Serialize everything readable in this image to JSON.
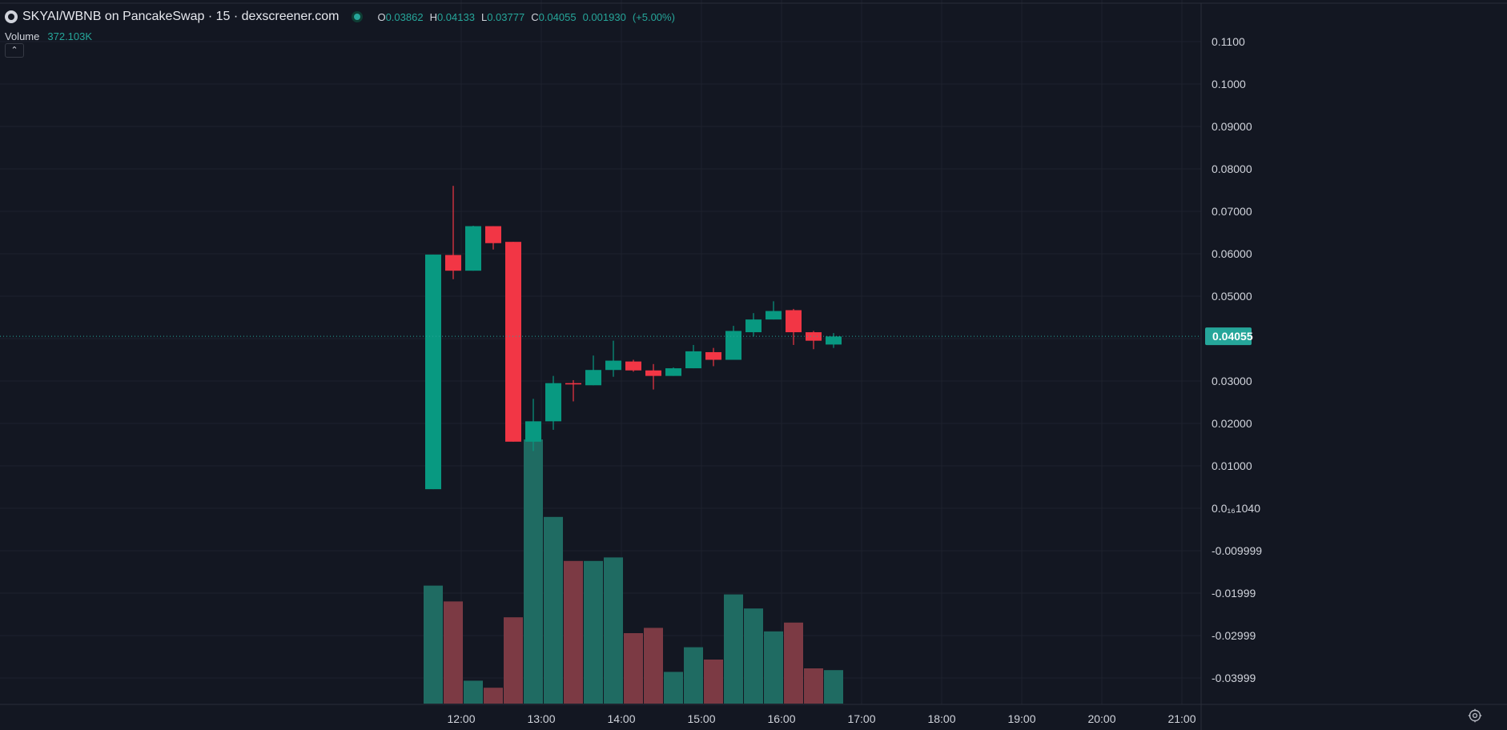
{
  "header": {
    "title": "SKYAI/WBNB on PancakeSwap · 15 · dexscreener.com",
    "ohlc": [
      {
        "k": "O",
        "v": "0.03862"
      },
      {
        "k": "H",
        "v": "0.04133"
      },
      {
        "k": "L",
        "v": "0.03777"
      },
      {
        "k": "C",
        "v": "0.04055"
      },
      {
        "k": "",
        "v": "0.001930"
      },
      {
        "k": "",
        "v": "(+5.00%)"
      }
    ],
    "volume_label": "Volume",
    "volume_value": "372.103K",
    "collapse_icon": "chevron-up-icon"
  },
  "colors": {
    "background": "#131722",
    "grid": "#1e222d",
    "up": "#089981",
    "down": "#f23645",
    "up_volume": "#1f6b62",
    "down_volume": "#7c3a44",
    "axis_text": "#d1d4dc",
    "price_line": "#26a69a"
  },
  "chart_data": {
    "type": "candlestick",
    "y_axis": {
      "labels": [
        "0.1100",
        "0.1000",
        "0.09000",
        "0.08000",
        "0.07000",
        "0.06000",
        "0.05000",
        "0.04000",
        "0.03000",
        "0.02000",
        "0.01000",
        "0.0₁₆1040",
        "-0.009999",
        "-0.01999",
        "-0.02999",
        "-0.03999"
      ],
      "label_values": [
        0.11,
        0.1,
        0.09,
        0.08,
        0.07,
        0.06,
        0.05,
        0.04,
        0.03,
        0.02,
        0.01,
        0.0,
        -0.01,
        -0.02,
        -0.03,
        -0.04
      ],
      "range": [
        -0.046,
        0.116
      ]
    },
    "x_axis": {
      "labels": [
        "12:00",
        "13:00",
        "14:00",
        "15:00",
        "16:00",
        "17:00",
        "18:00",
        "19:00",
        "20:00",
        "21:00"
      ],
      "label_hours": [
        12,
        13,
        14,
        15,
        16,
        17,
        18,
        19,
        20,
        21
      ]
    },
    "current_price": "0.04055",
    "current_price_value": 0.04055,
    "candles": [
      {
        "t": "11:30",
        "o": 0.0045,
        "h": 0.0598,
        "l": 0.0045,
        "c": 0.0598,
        "vol": 0.67
      },
      {
        "t": "11:45",
        "o": 0.0597,
        "h": 0.076,
        "l": 0.054,
        "c": 0.056,
        "vol": 0.58
      },
      {
        "t": "12:00",
        "o": 0.056,
        "h": 0.0666,
        "l": 0.056,
        "c": 0.0665,
        "vol": 0.13
      },
      {
        "t": "12:15",
        "o": 0.0665,
        "h": 0.0665,
        "l": 0.061,
        "c": 0.0625,
        "vol": 0.09
      },
      {
        "t": "12:30",
        "o": 0.0628,
        "h": 0.0628,
        "l": 0.0157,
        "c": 0.0157,
        "vol": 0.49
      },
      {
        "t": "12:45",
        "o": 0.0157,
        "h": 0.0258,
        "l": 0.0135,
        "c": 0.0205,
        "vol": 1.5
      },
      {
        "t": "13:00",
        "o": 0.0205,
        "h": 0.0312,
        "l": 0.0185,
        "c": 0.0295,
        "vol": 1.06
      },
      {
        "t": "13:15",
        "o": 0.0295,
        "h": 0.0302,
        "l": 0.0252,
        "c": 0.0292,
        "vol": 0.81
      },
      {
        "t": "13:30",
        "o": 0.029,
        "h": 0.036,
        "l": 0.029,
        "c": 0.0326,
        "vol": 0.81
      },
      {
        "t": "13:45",
        "o": 0.0326,
        "h": 0.0395,
        "l": 0.031,
        "c": 0.0348,
        "vol": 0.83
      },
      {
        "t": "14:00",
        "o": 0.0346,
        "h": 0.035,
        "l": 0.0322,
        "c": 0.0325,
        "vol": 0.4
      },
      {
        "t": "14:15",
        "o": 0.0325,
        "h": 0.034,
        "l": 0.028,
        "c": 0.0312,
        "vol": 0.43
      },
      {
        "t": "14:30",
        "o": 0.0312,
        "h": 0.0332,
        "l": 0.0312,
        "c": 0.033,
        "vol": 0.18
      },
      {
        "t": "14:45",
        "o": 0.033,
        "h": 0.0385,
        "l": 0.033,
        "c": 0.037,
        "vol": 0.32
      },
      {
        "t": "15:00",
        "o": 0.0368,
        "h": 0.0378,
        "l": 0.0335,
        "c": 0.035,
        "vol": 0.25
      },
      {
        "t": "15:15",
        "o": 0.035,
        "h": 0.043,
        "l": 0.035,
        "c": 0.0418,
        "vol": 0.62
      },
      {
        "t": "15:30",
        "o": 0.0415,
        "h": 0.046,
        "l": 0.0405,
        "c": 0.0445,
        "vol": 0.54
      },
      {
        "t": "15:45",
        "o": 0.0445,
        "h": 0.0488,
        "l": 0.0445,
        "c": 0.0465,
        "vol": 0.41
      },
      {
        "t": "16:00",
        "o": 0.0467,
        "h": 0.047,
        "l": 0.0385,
        "c": 0.0415,
        "vol": 0.46
      },
      {
        "t": "16:15",
        "o": 0.0415,
        "h": 0.0418,
        "l": 0.0375,
        "c": 0.0395,
        "vol": 0.2
      },
      {
        "t": "16:30",
        "o": 0.0386,
        "h": 0.0413,
        "l": 0.0378,
        "c": 0.0405,
        "vol": 0.19
      }
    ]
  },
  "footer": {
    "settings_icon": "gear-icon"
  }
}
